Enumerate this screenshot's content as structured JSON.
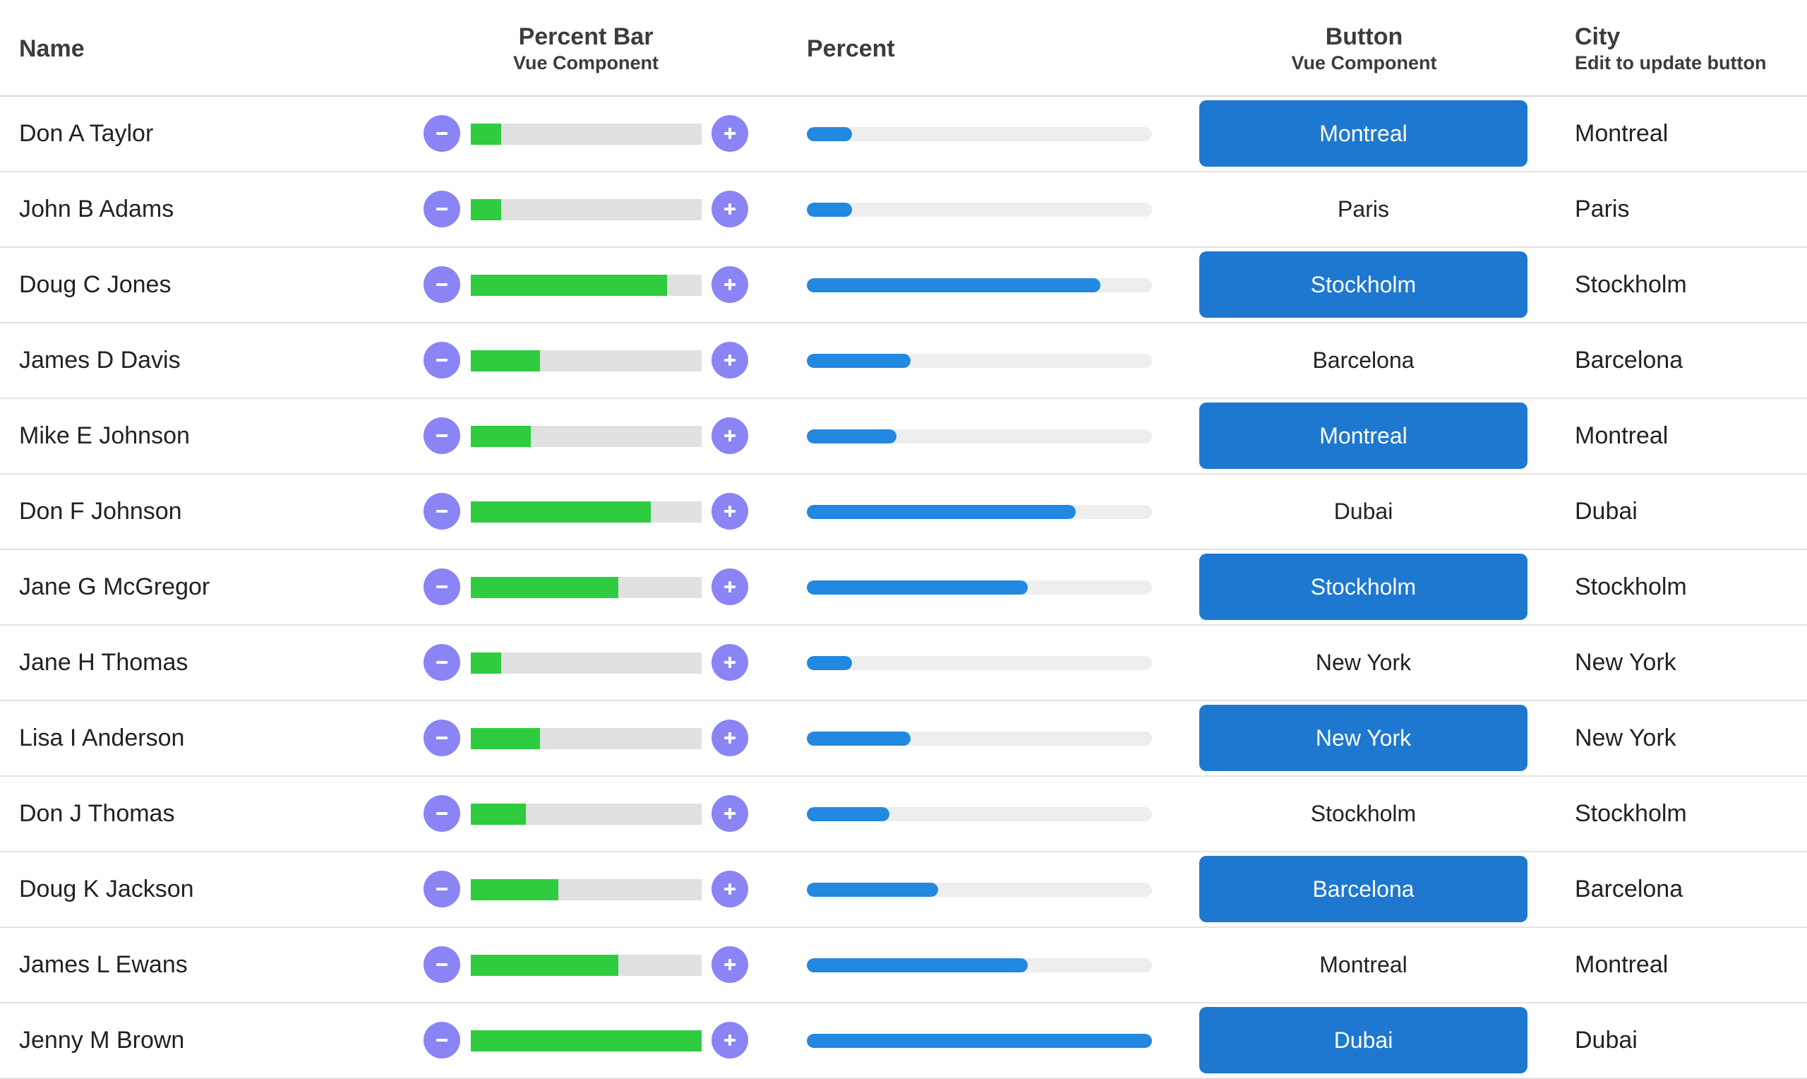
{
  "header": {
    "name": "Name",
    "percent_bar_title": "Percent Bar",
    "percent_bar_sub": "Vue Component",
    "percent": "Percent",
    "button_title": "Button",
    "button_sub": "Vue Component",
    "city_title": "City",
    "city_sub": "Edit to update button"
  },
  "colors": {
    "percent_bar_fill": "#2ecc3e",
    "percent_bar_track": "#e0e0e0",
    "percent_fill": "#2288e0",
    "percent_track": "#eeeeee",
    "round_button": "#8b84f5",
    "city_button": "#1e78d0"
  },
  "icons": {
    "decrement": "minus-icon",
    "increment": "plus-icon"
  },
  "rows": [
    {
      "name": "Don A Taylor",
      "percent": 13,
      "button": "Montreal",
      "button_style": "filled",
      "city": "Montreal"
    },
    {
      "name": "John B Adams",
      "percent": 13,
      "button": "Paris",
      "button_style": "plain",
      "city": "Paris"
    },
    {
      "name": "Doug C Jones",
      "percent": 85,
      "button": "Stockholm",
      "button_style": "filled",
      "city": "Stockholm"
    },
    {
      "name": "James D Davis",
      "percent": 30,
      "button": "Barcelona",
      "button_style": "plain",
      "city": "Barcelona"
    },
    {
      "name": "Mike E Johnson",
      "percent": 26,
      "button": "Montreal",
      "button_style": "filled",
      "city": "Montreal"
    },
    {
      "name": "Don F Johnson",
      "percent": 78,
      "button": "Dubai",
      "button_style": "plain",
      "city": "Dubai"
    },
    {
      "name": "Jane G McGregor",
      "percent": 64,
      "button": "Stockholm",
      "button_style": "filled",
      "city": "Stockholm"
    },
    {
      "name": "Jane H Thomas",
      "percent": 13,
      "button": "New York",
      "button_style": "plain",
      "city": "New York"
    },
    {
      "name": "Lisa I Anderson",
      "percent": 30,
      "button": "New York",
      "button_style": "filled",
      "city": "New York"
    },
    {
      "name": "Don J Thomas",
      "percent": 24,
      "button": "Stockholm",
      "button_style": "plain",
      "city": "Stockholm"
    },
    {
      "name": "Doug K Jackson",
      "percent": 38,
      "button": "Barcelona",
      "button_style": "filled",
      "city": "Barcelona"
    },
    {
      "name": "James L Ewans",
      "percent": 64,
      "button": "Montreal",
      "button_style": "plain",
      "city": "Montreal"
    },
    {
      "name": "Jenny M Brown",
      "percent": 100,
      "button": "Dubai",
      "button_style": "filled",
      "city": "Dubai"
    }
  ]
}
